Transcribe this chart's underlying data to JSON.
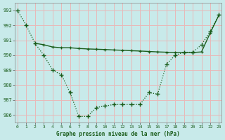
{
  "title": "Graphe pression niveau de la mer (hPa)",
  "bg_color": "#c8eaea",
  "grid_color_major": "#e8b8b8",
  "grid_color_minor": "#e8cccc",
  "line_color": "#1a5c1a",
  "xlim": [
    -0.3,
    23.3
  ],
  "ylim": [
    985.5,
    993.5
  ],
  "yticks": [
    986,
    987,
    988,
    989,
    990,
    991,
    992,
    993
  ],
  "xticks": [
    0,
    1,
    2,
    3,
    4,
    5,
    6,
    7,
    8,
    9,
    10,
    11,
    12,
    13,
    14,
    15,
    16,
    17,
    18,
    19,
    20,
    21,
    22,
    23
  ],
  "series1_x": [
    0,
    1,
    2,
    3,
    4,
    5,
    6,
    7,
    8,
    9,
    10,
    11,
    12,
    13,
    14,
    15,
    16,
    17,
    18,
    19,
    20,
    21,
    22,
    23
  ],
  "series1_y": [
    993.0,
    992.0,
    990.8,
    990.0,
    989.0,
    988.7,
    987.5,
    985.9,
    985.9,
    986.5,
    986.6,
    986.7,
    986.7,
    986.7,
    986.7,
    987.5,
    987.4,
    989.4,
    990.0,
    990.2,
    990.2,
    990.7,
    991.6,
    992.7
  ],
  "series2_x": [
    2,
    3,
    4,
    5,
    6,
    7,
    8,
    9,
    10,
    11,
    12,
    13,
    14,
    15,
    16,
    17,
    18,
    19,
    20,
    21,
    22,
    23
  ],
  "series2_y": [
    990.8,
    990.7,
    990.55,
    990.5,
    990.5,
    990.45,
    990.42,
    990.4,
    990.38,
    990.35,
    990.33,
    990.3,
    990.28,
    990.25,
    990.22,
    990.2,
    990.18,
    990.18,
    990.18,
    990.22,
    991.5,
    992.7
  ]
}
